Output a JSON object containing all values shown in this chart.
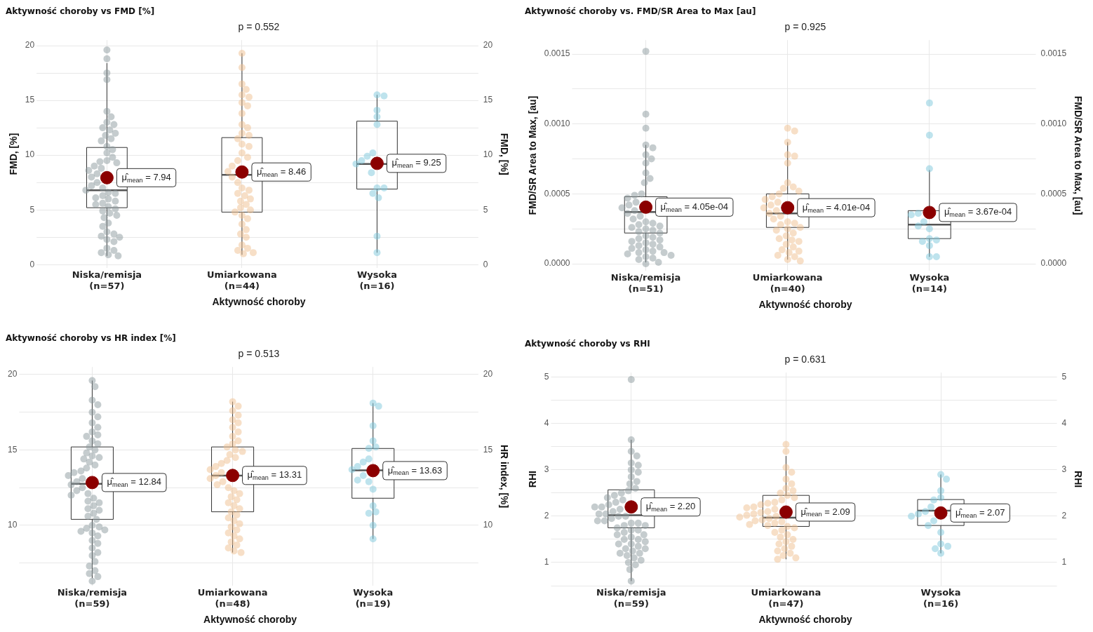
{
  "chart_data": [
    {
      "type": "box",
      "title": "Aktywność choroby vs FMD [%]",
      "subtitle": "p = 0.552",
      "xlabel": "Aktywność choroby",
      "ylabel": "FMD, [%]",
      "y2label": "FMD, [%]",
      "grid": true,
      "categories": [
        "Niska/remisja\n(n=57)",
        "Umiarkowana\n(n=44)",
        "Wysoka\n(n=16)"
      ],
      "ylim": [
        -0.3,
        20.5
      ],
      "yticks": [
        0,
        {
          "value": 2.5,
          "label": null
        },
        5,
        {
          "value": 7.5,
          "label": null
        },
        10,
        {
          "value": 12.5,
          "label": null
        },
        15,
        {
          "value": 17.5,
          "label": null
        },
        20
      ],
      "y2lim": [
        -0.3,
        20.5
      ],
      "y2ticks": [
        0,
        5,
        10,
        15,
        20
      ],
      "boxes": [
        {
          "low": 0.8,
          "q1": 5.2,
          "median": 6.8,
          "q3": 10.7,
          "high": 18.4
        },
        {
          "low": 0.9,
          "q1": 4.8,
          "median": 8.2,
          "q3": 11.6,
          "high": 19.3
        },
        {
          "low": 1.1,
          "q1": 6.9,
          "median": 9.2,
          "q3": 13.1,
          "high": 15.5
        }
      ],
      "series": [
        {
          "type": "scatter",
          "color": "#8c9a9e",
          "x": [
            "Niska/remisja\n(n=57)",
            "Niska/remisja\n(n=57)",
            "Niska/remisja\n(n=57)",
            "Niska/remisja\n(n=57)",
            "Niska/remisja\n(n=57)",
            "Niska/remisja\n(n=57)",
            "Niska/remisja\n(n=57)",
            "Niska/remisja\n(n=57)",
            "Niska/remisja\n(n=57)",
            "Niska/remisja\n(n=57)",
            "Niska/remisja\n(n=57)",
            "Niska/remisja\n(n=57)",
            "Niska/remisja\n(n=57)",
            "Niska/remisja\n(n=57)",
            "Niska/remisja\n(n=57)",
            "Niska/remisja\n(n=57)",
            "Niska/remisja\n(n=57)",
            "Niska/remisja\n(n=57)",
            "Niska/remisja\n(n=57)",
            "Niska/remisja\n(n=57)",
            "Niska/remisja\n(n=57)",
            "Niska/remisja\n(n=57)",
            "Niska/remisja\n(n=57)",
            "Niska/remisja\n(n=57)",
            "Niska/remisja\n(n=57)",
            "Niska/remisja\n(n=57)",
            "Niska/remisja\n(n=57)",
            "Niska/remisja\n(n=57)",
            "Niska/remisja\n(n=57)",
            "Niska/remisja\n(n=57)",
            "Niska/remisja\n(n=57)",
            "Niska/remisja\n(n=57)",
            "Niska/remisja\n(n=57)",
            "Niska/remisja\n(n=57)",
            "Niska/remisja\n(n=57)",
            "Niska/remisja\n(n=57)",
            "Niska/remisja\n(n=57)",
            "Niska/remisja\n(n=57)",
            "Niska/remisja\n(n=57)",
            "Niska/remisja\n(n=57)",
            "Niska/remisja\n(n=57)",
            "Niska/remisja\n(n=57)",
            "Niska/remisja\n(n=57)",
            "Niska/remisja\n(n=57)",
            "Niska/remisja\n(n=57)",
            "Niska/remisja\n(n=57)",
            "Niska/remisja\n(n=57)",
            "Niska/remisja\n(n=57)",
            "Niska/remisja\n(n=57)",
            "Niska/remisja\n(n=57)",
            "Niska/remisja\n(n=57)",
            "Niska/remisja\n(n=57)",
            "Niska/remisja\n(n=57)",
            "Niska/remisja\n(n=57)",
            "Niska/remisja\n(n=57)",
            "Niska/remisja\n(n=57)",
            "Niska/remisja\n(n=57)"
          ],
          "values": [
            19.6,
            18.8,
            17.5,
            16.9,
            14,
            13.5,
            13,
            12.8,
            12.5,
            12.3,
            12,
            11.8,
            11.5,
            11.3,
            10.8,
            10.5,
            10.2,
            9.8,
            9.5,
            9.4,
            9.3,
            9,
            8.8,
            8.6,
            8.3,
            8,
            7.5,
            7.2,
            7,
            6.8,
            6.6,
            6.5,
            6.3,
            6.1,
            6,
            5.8,
            5.6,
            5.5,
            5.3,
            5.1,
            4.9,
            4.7,
            4.5,
            4.3,
            3.8,
            3.5,
            3,
            2.8,
            2.6,
            2.5,
            2.3,
            2.1,
            1.5,
            1.3,
            1.1,
            0.9,
            0.8
          ]
        },
        {
          "type": "scatter",
          "color": "#f0c08f",
          "x": [
            "Umiarkowana\n(n=44)",
            "Umiarkowana\n(n=44)",
            "Umiarkowana\n(n=44)",
            "Umiarkowana\n(n=44)",
            "Umiarkowana\n(n=44)",
            "Umiarkowana\n(n=44)",
            "Umiarkowana\n(n=44)",
            "Umiarkowana\n(n=44)",
            "Umiarkowana\n(n=44)",
            "Umiarkowana\n(n=44)",
            "Umiarkowana\n(n=44)",
            "Umiarkowana\n(n=44)",
            "Umiarkowana\n(n=44)",
            "Umiarkowana\n(n=44)",
            "Umiarkowana\n(n=44)",
            "Umiarkowana\n(n=44)",
            "Umiarkowana\n(n=44)",
            "Umiarkowana\n(n=44)",
            "Umiarkowana\n(n=44)",
            "Umiarkowana\n(n=44)",
            "Umiarkowana\n(n=44)",
            "Umiarkowana\n(n=44)",
            "Umiarkowana\n(n=44)",
            "Umiarkowana\n(n=44)",
            "Umiarkowana\n(n=44)",
            "Umiarkowana\n(n=44)",
            "Umiarkowana\n(n=44)",
            "Umiarkowana\n(n=44)",
            "Umiarkowana\n(n=44)",
            "Umiarkowana\n(n=44)",
            "Umiarkowana\n(n=44)",
            "Umiarkowana\n(n=44)",
            "Umiarkowana\n(n=44)",
            "Umiarkowana\n(n=44)",
            "Umiarkowana\n(n=44)",
            "Umiarkowana\n(n=44)",
            "Umiarkowana\n(n=44)",
            "Umiarkowana\n(n=44)",
            "Umiarkowana\n(n=44)",
            "Umiarkowana\n(n=44)",
            "Umiarkowana\n(n=44)",
            "Umiarkowana\n(n=44)",
            "Umiarkowana\n(n=44)",
            "Umiarkowana\n(n=44)"
          ],
          "values": [
            19.3,
            18,
            16.5,
            16,
            15.5,
            15.3,
            14.8,
            14.5,
            13.8,
            12.8,
            12.5,
            12,
            11.8,
            11.5,
            11,
            10.8,
            10.2,
            9.8,
            9.5,
            9,
            8.5,
            8,
            7.5,
            7,
            6.8,
            6.5,
            6.3,
            6,
            5.8,
            5.5,
            5.2,
            5,
            4.8,
            4.5,
            4.2,
            3.7,
            3.2,
            2.8,
            2.5,
            1.8,
            1.5,
            1.3,
            1.1,
            1
          ]
        },
        {
          "type": "scatter",
          "color": "#7ec8dc",
          "x": [
            "Wysoka\n(n=16)",
            "Wysoka\n(n=16)",
            "Wysoka\n(n=16)",
            "Wysoka\n(n=16)",
            "Wysoka\n(n=16)",
            "Wysoka\n(n=16)",
            "Wysoka\n(n=16)",
            "Wysoka\n(n=16)",
            "Wysoka\n(n=16)",
            "Wysoka\n(n=16)",
            "Wysoka\n(n=16)",
            "Wysoka\n(n=16)",
            "Wysoka\n(n=16)",
            "Wysoka\n(n=16)",
            "Wysoka\n(n=16)",
            "Wysoka\n(n=16)"
          ],
          "values": [
            15.5,
            15.4,
            14.1,
            13.5,
            12.8,
            10.2,
            9.9,
            9.5,
            8.4,
            7,
            7,
            6.5,
            6.1,
            2.6,
            1.1,
            9.2
          ]
        },
        {
          "type": "scatter",
          "color": "#8b0000",
          "x": [
            "Niska/remisja\n(n=57)",
            "Umiarkowana\n(n=44)",
            "Wysoka\n(n=16)"
          ],
          "values": [
            7.94,
            8.46,
            9.25
          ]
        }
      ],
      "annotations": [
        {
          "text": "μ̂$_{mean}$ = 7.94",
          "x": "Niska/remisja\n(n=57)",
          "y": 7.94
        },
        {
          "text": "μ̂$_{mean}$ = 8.46",
          "x": "Umiarkowana\n(n=44)",
          "y": 8.46
        },
        {
          "text": "μ̂$_{mean}$ = 9.25",
          "x": "Wysoka\n(n=16)",
          "y": 9.25
        }
      ]
    },
    {
      "type": "box",
      "title": "Aktywność choroby vs. FMD/SR Area to Max [au]",
      "subtitle": "p = 0.925",
      "xlabel": "Aktywność choroby",
      "ylabel": "FMD/SR Area to Max, [au]",
      "y2label": "FMD/SR Area to Max, [au]",
      "grid": true,
      "categories": [
        "Niska/remisja\n(n=51)",
        "Umiarkowana\n(n=40)",
        "Wysoka\n(n=14)"
      ],
      "ylim": [
        -5e-05,
        0.0016
      ],
      "yticks": [
        {
          "value": 0,
          "label": "0.0000"
        },
        {
          "value": 0.00025,
          "label": null
        },
        {
          "value": 0.0005,
          "label": "0.0005"
        },
        {
          "value": 0.00075,
          "label": null
        },
        {
          "value": 0.001,
          "label": "0.0010"
        },
        {
          "value": 0.00125,
          "label": null
        },
        {
          "value": 0.0015,
          "label": "0.0015"
        }
      ],
      "y2lim": [
        -5e-05,
        0.0016
      ],
      "y2ticks": [
        {
          "value": 0,
          "label": "0.0000"
        },
        {
          "value": 0.0005,
          "label": "0.0005"
        },
        {
          "value": 0.001,
          "label": "0.0010"
        },
        {
          "value": 0.0015,
          "label": "0.0015"
        }
      ],
      "boxes": [
        {
          "low": 1e-05,
          "q1": 0.00022,
          "median": 0.00037,
          "q3": 0.00048,
          "high": 0.00085
        },
        {
          "low": 3e-05,
          "q1": 0.00026,
          "median": 0.00036,
          "q3": 0.0005,
          "high": 0.00087
        },
        {
          "low": 5e-05,
          "q1": 0.00018,
          "median": 0.00028,
          "q3": 0.00038,
          "high": 0.00067
        }
      ],
      "series": [
        {
          "type": "scatter",
          "color": "#8c9a9e",
          "x": [
            "Niska/remisja\n(n=51)",
            "Niska/remisja\n(n=51)",
            "Niska/remisja\n(n=51)",
            "Niska/remisja\n(n=51)",
            "Niska/remisja\n(n=51)",
            "Niska/remisja\n(n=51)",
            "Niska/remisja\n(n=51)",
            "Niska/remisja\n(n=51)",
            "Niska/remisja\n(n=51)",
            "Niska/remisja\n(n=51)",
            "Niska/remisja\n(n=51)",
            "Niska/remisja\n(n=51)",
            "Niska/remisja\n(n=51)",
            "Niska/remisja\n(n=51)",
            "Niska/remisja\n(n=51)",
            "Niska/remisja\n(n=51)",
            "Niska/remisja\n(n=51)",
            "Niska/remisja\n(n=51)",
            "Niska/remisja\n(n=51)",
            "Niska/remisja\n(n=51)",
            "Niska/remisja\n(n=51)",
            "Niska/remisja\n(n=51)",
            "Niska/remisja\n(n=51)",
            "Niska/remisja\n(n=51)",
            "Niska/remisja\n(n=51)",
            "Niska/remisja\n(n=51)",
            "Niska/remisja\n(n=51)",
            "Niska/remisja\n(n=51)",
            "Niska/remisja\n(n=51)",
            "Niska/remisja\n(n=51)",
            "Niska/remisja\n(n=51)",
            "Niska/remisja\n(n=51)",
            "Niska/remisja\n(n=51)",
            "Niska/remisja\n(n=51)",
            "Niska/remisja\n(n=51)",
            "Niska/remisja\n(n=51)",
            "Niska/remisja\n(n=51)",
            "Niska/remisja\n(n=51)",
            "Niska/remisja\n(n=51)",
            "Niska/remisja\n(n=51)",
            "Niska/remisja\n(n=51)",
            "Niska/remisja\n(n=51)",
            "Niska/remisja\n(n=51)",
            "Niska/remisja\n(n=51)",
            "Niska/remisja\n(n=51)",
            "Niska/remisja\n(n=51)",
            "Niska/remisja\n(n=51)",
            "Niska/remisja\n(n=51)",
            "Niska/remisja\n(n=51)",
            "Niska/remisja\n(n=51)",
            "Niska/remisja\n(n=51)"
          ],
          "values": [
            0.00152,
            0.00107,
            0.00097,
            0.00085,
            0.00083,
            0.00078,
            0.00075,
            0.00072,
            0.00065,
            0.00061,
            0.00058,
            0.0005,
            0.00049,
            0.00047,
            0.00044,
            0.00042,
            0.0004,
            0.00038,
            0.00036,
            0.00034,
            0.00032,
            0.0003,
            0.00029,
            0.00028,
            0.00027,
            0.00026,
            0.00025,
            0.00024,
            0.00023,
            0.00022,
            0.0002,
            0.00019,
            0.00018,
            0.00017,
            0.00016,
            0.00015,
            0.00014,
            0.00013,
            0.00012,
            0.00011,
            0.0001,
            9e-05,
            8e-05,
            8e-05,
            7e-05,
            6e-05,
            5e-05,
            4e-05,
            3e-05,
            1e-05,
            0
          ]
        },
        {
          "type": "scatter",
          "color": "#f0c08f",
          "x": [
            "Umiarkowana\n(n=40)",
            "Umiarkowana\n(n=40)",
            "Umiarkowana\n(n=40)",
            "Umiarkowana\n(n=40)",
            "Umiarkowana\n(n=40)",
            "Umiarkowana\n(n=40)",
            "Umiarkowana\n(n=40)",
            "Umiarkowana\n(n=40)",
            "Umiarkowana\n(n=40)",
            "Umiarkowana\n(n=40)",
            "Umiarkowana\n(n=40)",
            "Umiarkowana\n(n=40)",
            "Umiarkowana\n(n=40)",
            "Umiarkowana\n(n=40)",
            "Umiarkowana\n(n=40)",
            "Umiarkowana\n(n=40)",
            "Umiarkowana\n(n=40)",
            "Umiarkowana\n(n=40)",
            "Umiarkowana\n(n=40)",
            "Umiarkowana\n(n=40)",
            "Umiarkowana\n(n=40)",
            "Umiarkowana\n(n=40)",
            "Umiarkowana\n(n=40)",
            "Umiarkowana\n(n=40)",
            "Umiarkowana\n(n=40)",
            "Umiarkowana\n(n=40)",
            "Umiarkowana\n(n=40)",
            "Umiarkowana\n(n=40)",
            "Umiarkowana\n(n=40)",
            "Umiarkowana\n(n=40)",
            "Umiarkowana\n(n=40)",
            "Umiarkowana\n(n=40)",
            "Umiarkowana\n(n=40)",
            "Umiarkowana\n(n=40)",
            "Umiarkowana\n(n=40)",
            "Umiarkowana\n(n=40)",
            "Umiarkowana\n(n=40)",
            "Umiarkowana\n(n=40)",
            "Umiarkowana\n(n=40)",
            "Umiarkowana\n(n=40)"
          ],
          "values": [
            0.00097,
            0.00095,
            0.00087,
            0.00078,
            0.00077,
            0.00072,
            0.00058,
            0.00055,
            0.00054,
            0.00052,
            0.0005,
            0.00048,
            0.00046,
            0.00044,
            0.00042,
            0.0004,
            0.00038,
            0.00036,
            0.00034,
            0.00032,
            0.0003,
            0.00029,
            0.00028,
            0.00026,
            0.00025,
            0.00024,
            0.00022,
            0.0002,
            0.00018,
            0.00016,
            0.00014,
            0.00012,
            0.0001,
            9e-05,
            8e-05,
            6e-05,
            5e-05,
            3e-05,
            2e-05,
            0.00017
          ]
        },
        {
          "type": "scatter",
          "color": "#7ec8dc",
          "x": [
            "Wysoka\n(n=14)",
            "Wysoka\n(n=14)",
            "Wysoka\n(n=14)",
            "Wysoka\n(n=14)",
            "Wysoka\n(n=14)",
            "Wysoka\n(n=14)",
            "Wysoka\n(n=14)",
            "Wysoka\n(n=14)",
            "Wysoka\n(n=14)",
            "Wysoka\n(n=14)",
            "Wysoka\n(n=14)",
            "Wysoka\n(n=14)",
            "Wysoka\n(n=14)",
            "Wysoka\n(n=14)"
          ],
          "values": [
            0.00115,
            0.00092,
            0.00068,
            0.00036,
            0.00035,
            0.00027,
            0.00025,
            0.00018,
            0.00017,
            0.00016,
            0.00013,
            5e-05,
            5e-05,
            0.0003
          ]
        },
        {
          "type": "scatter",
          "color": "#8b0000",
          "x": [
            "Niska/remisja\n(n=51)",
            "Umiarkowana\n(n=40)",
            "Wysoka\n(n=14)"
          ],
          "values": [
            0.000405,
            0.000401,
            0.000367
          ]
        }
      ],
      "annotations": [
        {
          "text": "μ̂$_{mean}$ = 4.05e-04",
          "x": "Niska/remisja\n(n=51)",
          "y": 0.000405
        },
        {
          "text": "μ̂$_{mean}$ = 4.01e-04",
          "x": "Umiarkowana\n(n=40)",
          "y": 0.000401
        },
        {
          "text": "μ̂$_{mean}$ = 3.67e-04",
          "x": "Wysoka\n(n=14)",
          "y": 0.000367
        }
      ]
    },
    {
      "type": "box",
      "title": "Aktywność choroby vs HR index [%]",
      "subtitle": "p = 0.513",
      "xlabel": "Aktywność choroby",
      "y2label": "HR index, [%]",
      "grid": true,
      "categories": [
        "Niska/remisja\n(n=59)",
        "Umiarkowana\n(n=48)",
        "Wysoka\n(n=19)"
      ],
      "ylim": [
        6,
        20.5
      ],
      "yticks": [
        {
          "value": 7.5,
          "label": null
        },
        10,
        {
          "value": 12.5,
          "label": null
        },
        15,
        {
          "value": 17.5,
          "label": null
        },
        20
      ],
      "y2lim": [
        6,
        20.5
      ],
      "y2ticks": [
        10,
        15,
        20
      ],
      "boxes": [
        {
          "low": 6.5,
          "q1": 10.4,
          "median": 12.75,
          "q3": 15.2,
          "high": 19.6
        },
        {
          "low": 8.2,
          "q1": 10.9,
          "median": 13.3,
          "q3": 15.2,
          "high": 18.2
        },
        {
          "low": 9.1,
          "q1": 11.8,
          "median": 13.65,
          "q3": 15.1,
          "high": 18.1
        }
      ],
      "series": [
        {
          "type": "scatter",
          "color": "#8c9a9e",
          "x": [
            "Niska/remisja\n(n=59)",
            "Niska/remisja\n(n=59)",
            "Niska/remisja\n(n=59)",
            "Niska/remisja\n(n=59)",
            "Niska/remisja\n(n=59)",
            "Niska/remisja\n(n=59)",
            "Niska/remisja\n(n=59)",
            "Niska/remisja\n(n=59)",
            "Niska/remisja\n(n=59)",
            "Niska/remisja\n(n=59)",
            "Niska/remisja\n(n=59)",
            "Niska/remisja\n(n=59)",
            "Niska/remisja\n(n=59)",
            "Niska/remisja\n(n=59)",
            "Niska/remisja\n(n=59)",
            "Niska/remisja\n(n=59)",
            "Niska/remisja\n(n=59)",
            "Niska/remisja\n(n=59)",
            "Niska/remisja\n(n=59)",
            "Niska/remisja\n(n=59)",
            "Niska/remisja\n(n=59)",
            "Niska/remisja\n(n=59)",
            "Niska/remisja\n(n=59)",
            "Niska/remisja\n(n=59)",
            "Niska/remisja\n(n=59)",
            "Niska/remisja\n(n=59)",
            "Niska/remisja\n(n=59)",
            "Niska/remisja\n(n=59)",
            "Niska/remisja\n(n=59)",
            "Niska/remisja\n(n=59)",
            "Niska/remisja\n(n=59)",
            "Niska/remisja\n(n=59)",
            "Niska/remisja\n(n=59)",
            "Niska/remisja\n(n=59)",
            "Niska/remisja\n(n=59)",
            "Niska/remisja\n(n=59)",
            "Niska/remisja\n(n=59)",
            "Niska/remisja\n(n=59)",
            "Niska/remisja\n(n=59)",
            "Niska/remisja\n(n=59)",
            "Niska/remisja\n(n=59)",
            "Niska/remisja\n(n=59)",
            "Niska/remisja\n(n=59)",
            "Niska/remisja\n(n=59)",
            "Niska/remisja\n(n=59)",
            "Niska/remisja\n(n=59)",
            "Niska/remisja\n(n=59)",
            "Niska/remisja\n(n=59)",
            "Niska/remisja\n(n=59)",
            "Niska/remisja\n(n=59)",
            "Niska/remisja\n(n=59)",
            "Niska/remisja\n(n=59)",
            "Niska/remisja\n(n=59)",
            "Niska/remisja\n(n=59)",
            "Niska/remisja\n(n=59)",
            "Niska/remisja\n(n=59)",
            "Niska/remisja\n(n=59)",
            "Niska/remisja\n(n=59)",
            "Niska/remisja\n(n=59)"
          ],
          "values": [
            19.6,
            19.2,
            18.3,
            18,
            17.5,
            17.2,
            16.8,
            16.5,
            16.2,
            16,
            15.9,
            15.6,
            15.4,
            15.2,
            15,
            14.8,
            14.6,
            14.5,
            14.4,
            14.2,
            14,
            13.8,
            13.6,
            13.5,
            13.3,
            13.1,
            12.9,
            12.7,
            12.5,
            12.3,
            12.1,
            12,
            11.8,
            11.6,
            11.5,
            11.3,
            11.1,
            11,
            10.8,
            10.6,
            10.4,
            10,
            9.9,
            9.8,
            9.7,
            9.6,
            9.5,
            9.3,
            9,
            8.8,
            8.5,
            8.2,
            8,
            7.6,
            7.3,
            7,
            6.8,
            6.6,
            6.3
          ]
        },
        {
          "type": "scatter",
          "color": "#f0c08f",
          "x": [
            "Umiarkowana\n(n=48)",
            "Umiarkowana\n(n=48)",
            "Umiarkowana\n(n=48)",
            "Umiarkowana\n(n=48)",
            "Umiarkowana\n(n=48)",
            "Umiarkowana\n(n=48)",
            "Umiarkowana\n(n=48)",
            "Umiarkowana\n(n=48)",
            "Umiarkowana\n(n=48)",
            "Umiarkowana\n(n=48)",
            "Umiarkowana\n(n=48)",
            "Umiarkowana\n(n=48)",
            "Umiarkowana\n(n=48)",
            "Umiarkowana\n(n=48)",
            "Umiarkowana\n(n=48)",
            "Umiarkowana\n(n=48)",
            "Umiarkowana\n(n=48)",
            "Umiarkowana\n(n=48)",
            "Umiarkowana\n(n=48)",
            "Umiarkowana\n(n=48)",
            "Umiarkowana\n(n=48)",
            "Umiarkowana\n(n=48)",
            "Umiarkowana\n(n=48)",
            "Umiarkowana\n(n=48)",
            "Umiarkowana\n(n=48)",
            "Umiarkowana\n(n=48)",
            "Umiarkowana\n(n=48)",
            "Umiarkowana\n(n=48)",
            "Umiarkowana\n(n=48)",
            "Umiarkowana\n(n=48)",
            "Umiarkowana\n(n=48)",
            "Umiarkowana\n(n=48)",
            "Umiarkowana\n(n=48)",
            "Umiarkowana\n(n=48)",
            "Umiarkowana\n(n=48)",
            "Umiarkowana\n(n=48)",
            "Umiarkowana\n(n=48)",
            "Umiarkowana\n(n=48)",
            "Umiarkowana\n(n=48)",
            "Umiarkowana\n(n=48)",
            "Umiarkowana\n(n=48)",
            "Umiarkowana\n(n=48)",
            "Umiarkowana\n(n=48)",
            "Umiarkowana\n(n=48)",
            "Umiarkowana\n(n=48)",
            "Umiarkowana\n(n=48)",
            "Umiarkowana\n(n=48)",
            "Umiarkowana\n(n=48)"
          ],
          "values": [
            18.2,
            17.9,
            17.6,
            17.3,
            17,
            16.8,
            16.5,
            16.2,
            15.9,
            15.6,
            15.4,
            15.2,
            15,
            14.9,
            14.7,
            14.5,
            14.3,
            14.1,
            13.9,
            13.7,
            13.5,
            13.3,
            13.1,
            12.9,
            12.7,
            12.5,
            12.3,
            12.1,
            11.9,
            11.7,
            11.5,
            11.3,
            11.1,
            10.9,
            10.7,
            10.5,
            10.3,
            10.1,
            9.9,
            9.7,
            9.5,
            9.3,
            9.1,
            8.9,
            8.7,
            8.5,
            8.3,
            8.2
          ]
        },
        {
          "type": "scatter",
          "color": "#7ec8dc",
          "x": [
            "Wysoka\n(n=19)",
            "Wysoka\n(n=19)",
            "Wysoka\n(n=19)",
            "Wysoka\n(n=19)",
            "Wysoka\n(n=19)",
            "Wysoka\n(n=19)",
            "Wysoka\n(n=19)",
            "Wysoka\n(n=19)",
            "Wysoka\n(n=19)",
            "Wysoka\n(n=19)",
            "Wysoka\n(n=19)",
            "Wysoka\n(n=19)",
            "Wysoka\n(n=19)",
            "Wysoka\n(n=19)",
            "Wysoka\n(n=19)",
            "Wysoka\n(n=19)",
            "Wysoka\n(n=19)",
            "Wysoka\n(n=19)",
            "Wysoka\n(n=19)"
          ],
          "values": [
            18.1,
            17.9,
            16.6,
            15.6,
            15.2,
            15.1,
            14.4,
            14.2,
            13.9,
            13.7,
            13.3,
            13,
            12.9,
            12.4,
            11.3,
            10.9,
            10.8,
            10,
            9.1
          ]
        },
        {
          "type": "scatter",
          "color": "#8b0000",
          "x": [
            "Niska/remisja\n(n=59)",
            "Umiarkowana\n(n=48)",
            "Wysoka\n(n=19)"
          ],
          "values": [
            12.84,
            13.31,
            13.63
          ]
        }
      ],
      "annotations": [
        {
          "text": "μ̂$_{mean}$ = 12.84",
          "x": "Niska/remisja\n(n=59)",
          "y": 12.84
        },
        {
          "text": "μ̂$_{mean}$ = 13.31",
          "x": "Umiarkowana\n(n=48)",
          "y": 13.31
        },
        {
          "text": "μ̂$_{mean}$ = 13.63",
          "x": "Wysoka\n(n=19)",
          "y": 13.63
        }
      ]
    },
    {
      "type": "box",
      "title": "Aktywność choroby vs RHI",
      "subtitle": "p = 0.631",
      "xlabel": "Aktywność choroby",
      "ylabel": "RHI",
      "y2label": "RHI",
      "grid": true,
      "categories": [
        "Niska/remisja\n(n=59)",
        "Umiarkowana\n(n=47)",
        "Wysoka\n(n=16)"
      ],
      "ylim": [
        0.5,
        5.1
      ],
      "yticks": [
        {
          "value": 0.5,
          "label": null
        },
        1,
        {
          "value": 1.5,
          "label": null
        },
        2,
        {
          "value": 2.5,
          "label": null
        },
        3,
        {
          "value": 3.5,
          "label": null
        },
        4,
        {
          "value": 4.5,
          "label": null
        },
        5
      ],
      "y2lim": [
        0.5,
        5.1
      ],
      "y2ticks": [
        1,
        2,
        3,
        4,
        5
      ],
      "boxes": [
        {
          "low": 0.6,
          "q1": 1.75,
          "median": 2.02,
          "q3": 2.57,
          "high": 3.65
        },
        {
          "low": 1.07,
          "q1": 1.78,
          "median": 1.97,
          "q3": 2.45,
          "high": 3.3
        },
        {
          "low": 1.2,
          "q1": 1.8,
          "median": 2.12,
          "q3": 2.36,
          "high": 2.9
        }
      ],
      "series": [
        {
          "type": "scatter",
          "color": "#8c9a9e",
          "x": [
            "Niska/remisja\n(n=59)",
            "Niska/remisja\n(n=59)",
            "Niska/remisja\n(n=59)",
            "Niska/remisja\n(n=59)",
            "Niska/remisja\n(n=59)",
            "Niska/remisja\n(n=59)",
            "Niska/remisja\n(n=59)",
            "Niska/remisja\n(n=59)",
            "Niska/remisja\n(n=59)",
            "Niska/remisja\n(n=59)",
            "Niska/remisja\n(n=59)",
            "Niska/remisja\n(n=59)",
            "Niska/remisja\n(n=59)",
            "Niska/remisja\n(n=59)",
            "Niska/remisja\n(n=59)",
            "Niska/remisja\n(n=59)",
            "Niska/remisja\n(n=59)",
            "Niska/remisja\n(n=59)",
            "Niska/remisja\n(n=59)",
            "Niska/remisja\n(n=59)",
            "Niska/remisja\n(n=59)",
            "Niska/remisja\n(n=59)",
            "Niska/remisja\n(n=59)",
            "Niska/remisja\n(n=59)",
            "Niska/remisja\n(n=59)",
            "Niska/remisja\n(n=59)",
            "Niska/remisja\n(n=59)",
            "Niska/remisja\n(n=59)",
            "Niska/remisja\n(n=59)",
            "Niska/remisja\n(n=59)",
            "Niska/remisja\n(n=59)",
            "Niska/remisja\n(n=59)",
            "Niska/remisja\n(n=59)",
            "Niska/remisja\n(n=59)",
            "Niska/remisja\n(n=59)",
            "Niska/remisja\n(n=59)",
            "Niska/remisja\n(n=59)",
            "Niska/remisja\n(n=59)",
            "Niska/remisja\n(n=59)",
            "Niska/remisja\n(n=59)",
            "Niska/remisja\n(n=59)",
            "Niska/remisja\n(n=59)",
            "Niska/remisja\n(n=59)",
            "Niska/remisja\n(n=59)",
            "Niska/remisja\n(n=59)",
            "Niska/remisja\n(n=59)",
            "Niska/remisja\n(n=59)",
            "Niska/remisja\n(n=59)",
            "Niska/remisja\n(n=59)",
            "Niska/remisja\n(n=59)",
            "Niska/remisja\n(n=59)",
            "Niska/remisja\n(n=59)",
            "Niska/remisja\n(n=59)",
            "Niska/remisja\n(n=59)",
            "Niska/remisja\n(n=59)",
            "Niska/remisja\n(n=59)",
            "Niska/remisja\n(n=59)",
            "Niska/remisja\n(n=59)",
            "Niska/remisja\n(n=59)"
          ],
          "values": [
            4.95,
            3.65,
            3.4,
            3.3,
            3.15,
            3.1,
            3,
            2.95,
            2.85,
            2.75,
            2.7,
            2.6,
            2.55,
            2.5,
            2.45,
            2.4,
            2.35,
            2.3,
            2.25,
            2.2,
            2.2,
            2.15,
            2.1,
            2.05,
            2.05,
            2,
            2,
            1.95,
            1.9,
            1.9,
            1.85,
            1.85,
            1.8,
            1.8,
            1.75,
            1.7,
            1.7,
            1.65,
            1.6,
            1.6,
            1.55,
            1.5,
            1.5,
            1.45,
            1.4,
            1.4,
            1.35,
            1.3,
            1.3,
            1.25,
            1.2,
            1.2,
            1.15,
            1.1,
            1.05,
            1,
            0.95,
            0.85,
            0.6
          ]
        },
        {
          "type": "scatter",
          "color": "#f0c08f",
          "x": [
            "Umiarkowana\n(n=47)",
            "Umiarkowana\n(n=47)",
            "Umiarkowana\n(n=47)",
            "Umiarkowana\n(n=47)",
            "Umiarkowana\n(n=47)",
            "Umiarkowana\n(n=47)",
            "Umiarkowana\n(n=47)",
            "Umiarkowana\n(n=47)",
            "Umiarkowana\n(n=47)",
            "Umiarkowana\n(n=47)",
            "Umiarkowana\n(n=47)",
            "Umiarkowana\n(n=47)",
            "Umiarkowana\n(n=47)",
            "Umiarkowana\n(n=47)",
            "Umiarkowana\n(n=47)",
            "Umiarkowana\n(n=47)",
            "Umiarkowana\n(n=47)",
            "Umiarkowana\n(n=47)",
            "Umiarkowana\n(n=47)",
            "Umiarkowana\n(n=47)",
            "Umiarkowana\n(n=47)",
            "Umiarkowana\n(n=47)",
            "Umiarkowana\n(n=47)",
            "Umiarkowana\n(n=47)",
            "Umiarkowana\n(n=47)",
            "Umiarkowana\n(n=47)",
            "Umiarkowana\n(n=47)",
            "Umiarkowana\n(n=47)",
            "Umiarkowana\n(n=47)",
            "Umiarkowana\n(n=47)",
            "Umiarkowana\n(n=47)",
            "Umiarkowana\n(n=47)",
            "Umiarkowana\n(n=47)",
            "Umiarkowana\n(n=47)",
            "Umiarkowana\n(n=47)",
            "Umiarkowana\n(n=47)",
            "Umiarkowana\n(n=47)",
            "Umiarkowana\n(n=47)",
            "Umiarkowana\n(n=47)",
            "Umiarkowana\n(n=47)",
            "Umiarkowana\n(n=47)",
            "Umiarkowana\n(n=47)",
            "Umiarkowana\n(n=47)",
            "Umiarkowana\n(n=47)",
            "Umiarkowana\n(n=47)",
            "Umiarkowana\n(n=47)",
            "Umiarkowana\n(n=47)"
          ],
          "values": [
            3.55,
            3.4,
            3.05,
            2.95,
            2.8,
            2.7,
            2.6,
            2.55,
            2.5,
            2.45,
            2.4,
            2.35,
            2.3,
            2.28,
            2.25,
            2.2,
            2.18,
            2.15,
            2.1,
            2.08,
            2.05,
            2.02,
            2,
            1.98,
            1.95,
            1.92,
            1.9,
            1.88,
            1.85,
            1.82,
            1.8,
            1.78,
            1.75,
            1.7,
            1.65,
            1.6,
            1.55,
            1.5,
            1.45,
            1.4,
            1.35,
            1.3,
            1.25,
            1.2,
            1.15,
            1.1,
            1.07
          ]
        },
        {
          "type": "scatter",
          "color": "#7ec8dc",
          "x": [
            "Wysoka\n(n=16)",
            "Wysoka\n(n=16)",
            "Wysoka\n(n=16)",
            "Wysoka\n(n=16)",
            "Wysoka\n(n=16)",
            "Wysoka\n(n=16)",
            "Wysoka\n(n=16)",
            "Wysoka\n(n=16)",
            "Wysoka\n(n=16)",
            "Wysoka\n(n=16)",
            "Wysoka\n(n=16)",
            "Wysoka\n(n=16)",
            "Wysoka\n(n=16)",
            "Wysoka\n(n=16)",
            "Wysoka\n(n=16)",
            "Wysoka\n(n=16)"
          ],
          "values": [
            2.9,
            2.8,
            2.55,
            2.4,
            2.35,
            2.2,
            2.1,
            2.05,
            2,
            1.9,
            1.8,
            1.65,
            1.4,
            1.35,
            1.3,
            1.2
          ]
        },
        {
          "type": "scatter",
          "color": "#8b0000",
          "x": [
            "Niska/remisja\n(n=59)",
            "Umiarkowana\n(n=47)",
            "Wysoka\n(n=16)"
          ],
          "values": [
            2.2,
            2.09,
            2.07
          ]
        }
      ],
      "annotations": [
        {
          "text": "μ̂$_{mean}$ = 2.20",
          "x": "Niska/remisja\n(n=59)",
          "y": 2.2
        },
        {
          "text": "μ̂$_{mean}$ = 2.09",
          "x": "Umiarkowana\n(n=47)",
          "y": 2.09
        },
        {
          "text": "μ̂$_{mean}$ = 2.07",
          "x": "Wysoka\n(n=16)",
          "y": 2.07
        }
      ]
    }
  ]
}
